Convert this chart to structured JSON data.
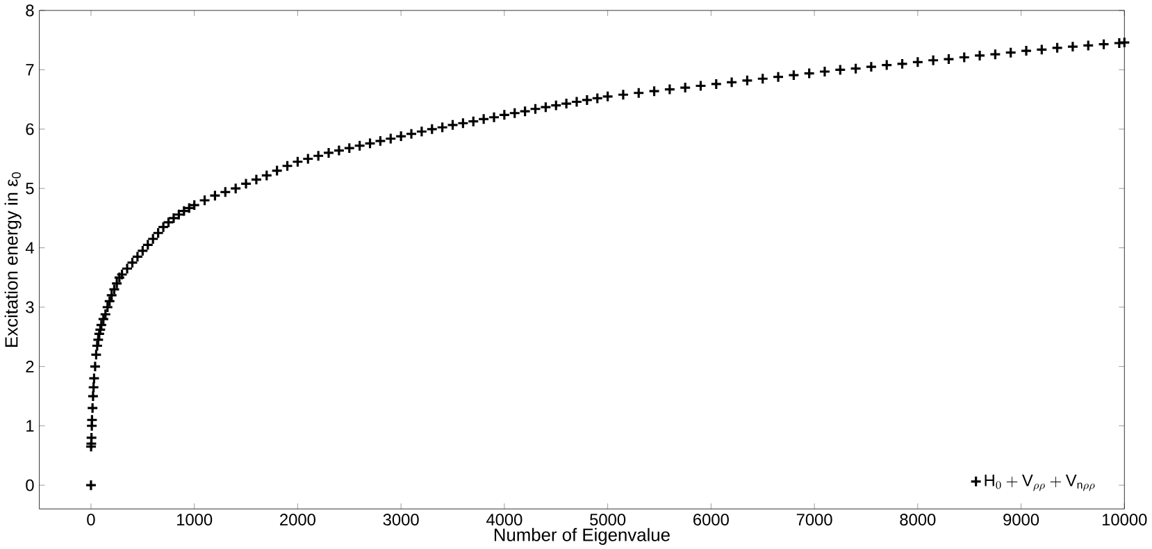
{
  "chart_data": {
    "type": "scatter",
    "xlabel": "Number of Eigenvalue",
    "ylabel": "Excitation energy in ε$_{0}$",
    "xlim": [
      -500,
      10000
    ],
    "ylim": [
      -0.4,
      8
    ],
    "xticks": [
      0,
      1000,
      2000,
      3000,
      4000,
      5000,
      6000,
      7000,
      8000,
      9000,
      10000
    ],
    "yticks": [
      0,
      1,
      2,
      3,
      4,
      5,
      6,
      7,
      8
    ],
    "marker": "cross",
    "legend": "bottom right",
    "grid": false,
    "series": [
      {
        "name": "\\mathrm{H}_{0}+\\mathrm{V}_{\\rho\\rho}+\\mathrm{V}_{\\mathrm{n}\\rho\\rho}",
        "color": "#000000",
        "x": [
          0,
          1,
          3,
          5,
          8,
          10,
          15,
          20,
          25,
          30,
          40,
          50,
          60,
          70,
          80,
          90,
          100,
          120,
          140,
          160,
          180,
          200,
          225,
          250,
          275,
          300,
          350,
          400,
          450,
          500,
          550,
          600,
          650,
          700,
          750,
          800,
          850,
          900,
          950,
          1000,
          1100,
          1200,
          1300,
          1400,
          1500,
          1600,
          1700,
          1800,
          1900,
          2000,
          2100,
          2200,
          2300,
          2400,
          2500,
          2600,
          2700,
          2800,
          2900,
          3000,
          3100,
          3200,
          3300,
          3400,
          3500,
          3600,
          3700,
          3800,
          3900,
          4000,
          4100,
          4200,
          4300,
          4400,
          4500,
          4600,
          4700,
          4800,
          4900,
          5000,
          5150,
          5300,
          5450,
          5600,
          5750,
          5900,
          6050,
          6200,
          6350,
          6500,
          6650,
          6800,
          6950,
          7100,
          7250,
          7400,
          7550,
          7700,
          7850,
          8000,
          8150,
          8300,
          8450,
          8600,
          8750,
          8900,
          9050,
          9200,
          9350,
          9500,
          9650,
          9800,
          9950,
          10000
        ],
        "values": [
          0,
          0.65,
          0.7,
          0.8,
          1.0,
          1.1,
          1.3,
          1.5,
          1.65,
          1.8,
          2.0,
          2.2,
          2.35,
          2.45,
          2.55,
          2.62,
          2.7,
          2.8,
          2.88,
          3.0,
          3.1,
          3.2,
          3.3,
          3.4,
          3.5,
          3.55,
          3.65,
          3.75,
          3.85,
          3.95,
          4.05,
          4.15,
          4.25,
          4.35,
          4.43,
          4.5,
          4.56,
          4.62,
          4.67,
          4.72,
          4.8,
          4.88,
          4.94,
          5.0,
          5.08,
          5.15,
          5.22,
          5.3,
          5.38,
          5.45,
          5.5,
          5.55,
          5.6,
          5.64,
          5.68,
          5.72,
          5.76,
          5.8,
          5.84,
          5.88,
          5.92,
          5.96,
          6.0,
          6.03,
          6.07,
          6.1,
          6.13,
          6.17,
          6.2,
          6.24,
          6.27,
          6.3,
          6.34,
          6.37,
          6.4,
          6.43,
          6.46,
          6.49,
          6.52,
          6.55,
          6.58,
          6.61,
          6.64,
          6.67,
          6.7,
          6.73,
          6.76,
          6.79,
          6.82,
          6.85,
          6.88,
          6.91,
          6.94,
          6.97,
          7.0,
          7.02,
          7.05,
          7.08,
          7.1,
          7.13,
          7.16,
          7.18,
          7.21,
          7.24,
          7.26,
          7.29,
          7.32,
          7.34,
          7.37,
          7.39,
          7.41,
          7.43,
          7.45,
          7.46
        ]
      }
    ]
  }
}
